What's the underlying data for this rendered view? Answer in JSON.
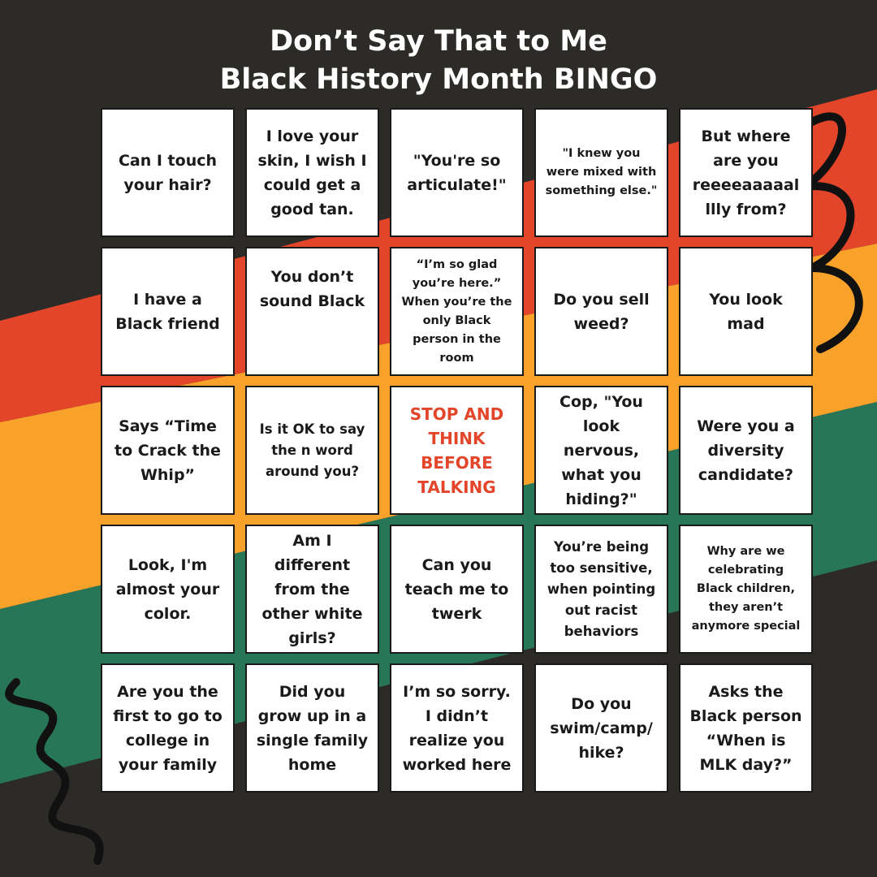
{
  "title": {
    "line1": "Don’t Say That to Me",
    "line2": "Black History Month BINGO"
  },
  "colors": {
    "background": "#2d2b28",
    "red": "#e2452a",
    "orange": "#f8a22b",
    "green": "#287658",
    "free_text": "#e2452a"
  },
  "cells": [
    "Can I touch your hair?",
    "I love your skin, I wish I could get a good tan.",
    "\"You're so articulate!\"",
    "\"I knew you were mixed with something else.\"",
    "But where are you reeeeaaaaal llly from?",
    "I have a Black friend",
    "You don’t sound Black",
    "“I’m so glad you’re here.” When you’re the only Black person in the room",
    "Do you sell weed?",
    "You look mad",
    "Says “Time to Crack the Whip”",
    "Is it OK to say the n word around you?",
    "STOP AND THINK BEFORE TALKING",
    "Cop, \"You look nervous, what you hiding?\"",
    "Were you a diversity candidate?",
    "Look, I'm almost your color.",
    "Am I different from the other white girls?",
    "Can you teach me to twerk",
    "You’re being too sensitive, when pointing out racist behaviors",
    "Why are we celebrating Black children, they aren’t anymore special",
    "Are you the first to go to college in your family",
    "Did you grow up in a single family home",
    "I’m so sorry. I didn’t realize you worked here",
    "Do you swim/camp/ hike?",
    "Asks the Black person “When is MLK day?”"
  ]
}
